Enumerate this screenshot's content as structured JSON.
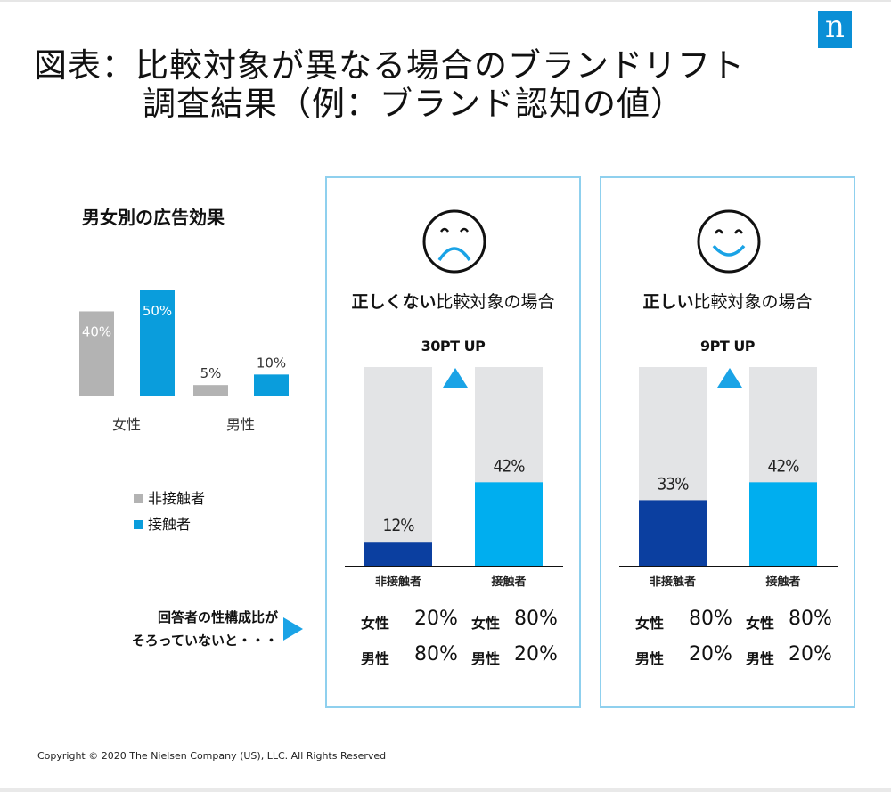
{
  "title": {
    "line1": "図表：比較対象が異なる場合のブランドリフト",
    "line2": "調査結果（例：ブランド認知の値）"
  },
  "logo_text": "n",
  "colors": {
    "non_exposed": "#b3b3b3",
    "exposed": "#0a9ddc",
    "panel_border": "#8fd0ee",
    "bar_bg": "#e3e4e6",
    "dark_blue": "#0b3fa0",
    "light_blue": "#00aeef",
    "arrow": "#1aa3e6"
  },
  "left": {
    "subtitle": "男女別の広告効果",
    "legend": [
      "非接触者",
      "接触者"
    ],
    "note_line1": "回答者の性構成比が",
    "note_line2": "そろっていないと・・・"
  },
  "chart_data": [
    {
      "type": "bar",
      "title": "男女別の広告効果",
      "categories": [
        "女性",
        "男性"
      ],
      "series": [
        {
          "name": "非接触者",
          "values": [
            40,
            5
          ],
          "labels": [
            "40%",
            "5%"
          ]
        },
        {
          "name": "接触者",
          "values": [
            50,
            10
          ],
          "labels": [
            "50%",
            "10%"
          ]
        }
      ],
      "ylim": [
        0,
        55
      ],
      "legend": "bottom"
    },
    {
      "type": "bar",
      "title_bold": "正しくない",
      "title_rest": "比較対象の場合",
      "lift": "30PT UP",
      "categories": [
        "非接触者",
        "接触者"
      ],
      "values": [
        12,
        42
      ],
      "labels": [
        "12%",
        "42%"
      ],
      "ylim": [
        0,
        100
      ],
      "bar_colors": [
        "#0b3fa0",
        "#00aeef"
      ]
    },
    {
      "type": "bar",
      "title_bold": "正しい",
      "title_rest": "比較対象の場合",
      "lift": "9PT UP",
      "categories": [
        "非接触者",
        "接触者"
      ],
      "values": [
        33,
        42
      ],
      "labels": [
        "33%",
        "42%"
      ],
      "ylim": [
        0,
        100
      ],
      "bar_colors": [
        "#0b3fa0",
        "#00aeef"
      ]
    }
  ],
  "panels": [
    {
      "face": "sad-face-icon",
      "stats": [
        {
          "gender": "女性",
          "v1": "20%",
          "v2": "80%"
        },
        {
          "gender": "男性",
          "v1": "80%",
          "v2": "20%"
        }
      ]
    },
    {
      "face": "happy-face-icon",
      "stats": [
        {
          "gender": "女性",
          "v1": "80%",
          "v2": "80%"
        },
        {
          "gender": "男性",
          "v1": "20%",
          "v2": "20%"
        }
      ]
    }
  ],
  "copyright": "Copyright © 2020 The Nielsen Company (US), LLC. All Rights Reserved"
}
